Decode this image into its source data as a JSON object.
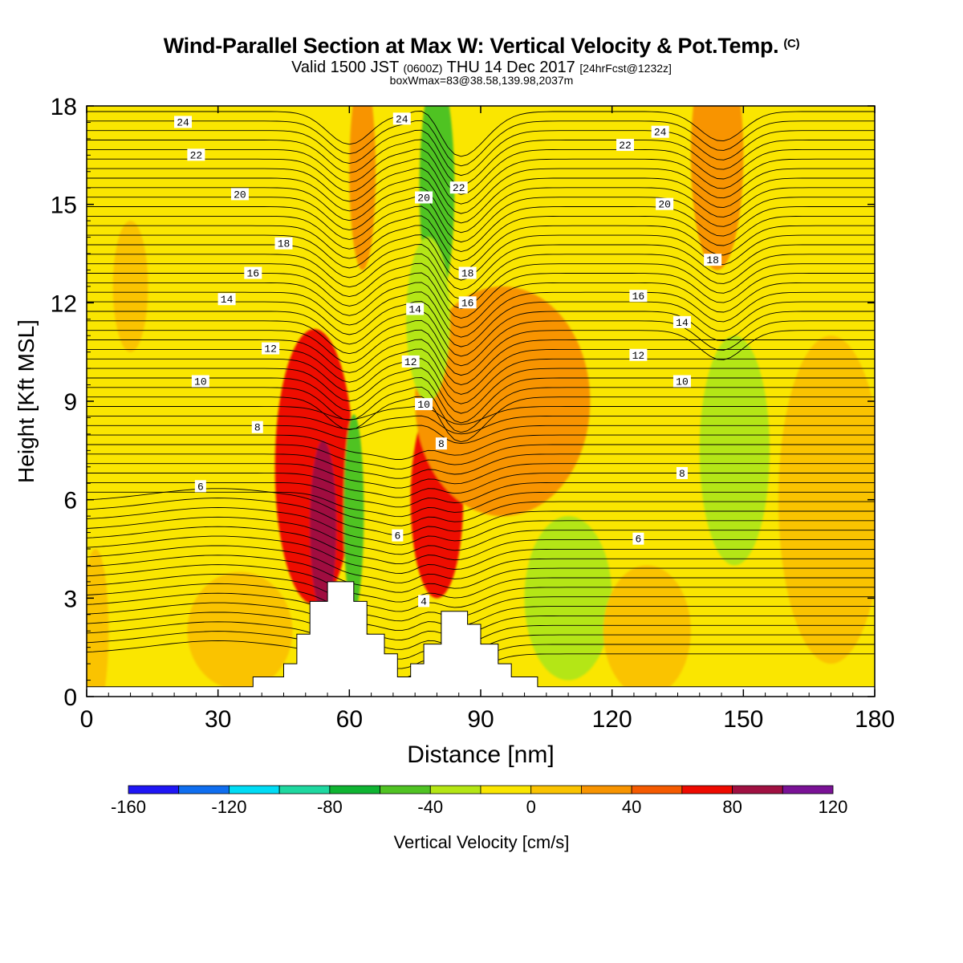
{
  "header": {
    "title": "Wind-Parallel Section at Max W: Vertical Velocity & Pot.Temp.",
    "copyright": "(C)",
    "valid_prefix": "Valid 1500 JST",
    "valid_utc": "(0600Z)",
    "valid_date": "THU 14 Dec 2017",
    "forecast": "[24hrFcst@1232z]",
    "box_info": "boxWmax=83@38.58,139.98,2037m"
  },
  "chart_data": {
    "type": "heatmap",
    "xlabel": "Distance [nm]",
    "ylabel": "Height [Kft MSL]",
    "xlim": [
      0,
      180
    ],
    "ylim": [
      0,
      18
    ],
    "x_ticks": [
      0,
      30,
      60,
      90,
      120,
      150,
      180
    ],
    "y_ticks": [
      0,
      3,
      6,
      9,
      12,
      15,
      18
    ],
    "colorbar": {
      "label": "Vertical Velocity [cm/s]",
      "tick_labels": [
        "-160",
        "-120",
        "-80",
        "-40",
        "0",
        "40",
        "80",
        "120"
      ],
      "tick_values": [
        -160,
        -120,
        -80,
        -40,
        0,
        40,
        80,
        120
      ],
      "bins": [
        {
          "lo": -160,
          "hi": -140,
          "color": "#1f16f5"
        },
        {
          "lo": -140,
          "hi": -120,
          "color": "#0f6ef0"
        },
        {
          "lo": -120,
          "hi": -100,
          "color": "#00dcf5"
        },
        {
          "lo": -100,
          "hi": -80,
          "color": "#1ed8a0"
        },
        {
          "lo": -80,
          "hi": -60,
          "color": "#0fb432"
        },
        {
          "lo": -60,
          "hi": -40,
          "color": "#50c323"
        },
        {
          "lo": -40,
          "hi": -20,
          "color": "#b4e614"
        },
        {
          "lo": -20,
          "hi": 0,
          "color": "#fae600"
        },
        {
          "lo": 0,
          "hi": 20,
          "color": "#fac300"
        },
        {
          "lo": 20,
          "hi": 40,
          "color": "#f89400"
        },
        {
          "lo": 40,
          "hi": 60,
          "color": "#f55a00"
        },
        {
          "lo": 60,
          "hi": 80,
          "color": "#ee0a00"
        },
        {
          "lo": 80,
          "hi": 100,
          "color": "#a01041"
        },
        {
          "lo": 100,
          "hi": 120,
          "color": "#7a1296"
        }
      ]
    },
    "vertical_velocity_features": [
      {
        "x": 52,
        "y": 7.0,
        "w_cm_s": 65,
        "rx": 9,
        "ry": 4.2
      },
      {
        "x": 54,
        "y": 5.2,
        "w_cm_s": 85,
        "rx": 3,
        "ry": 2.6
      },
      {
        "x": 61,
        "y": 5.6,
        "w_cm_s": -55,
        "rx": 2.3,
        "ry": 3.0
      },
      {
        "x": 80,
        "y": 6.0,
        "w_cm_s": 62,
        "rx": 6,
        "ry": 3.0
      },
      {
        "x": 95,
        "y": 9.0,
        "w_cm_s": 32,
        "rx": 20,
        "ry": 3.5
      },
      {
        "x": 80,
        "y": 15.5,
        "w_cm_s": -48,
        "rx": 4,
        "ry": 3.5
      },
      {
        "x": 78,
        "y": 11.5,
        "w_cm_s": -28,
        "rx": 5,
        "ry": 2.5
      },
      {
        "x": 148,
        "y": 7.5,
        "w_cm_s": -30,
        "rx": 8,
        "ry": 3.5
      },
      {
        "x": 110,
        "y": 3.0,
        "w_cm_s": -32,
        "rx": 10,
        "ry": 2.5
      },
      {
        "x": 144,
        "y": 16.5,
        "w_cm_s": 25,
        "rx": 6,
        "ry": 3.5
      },
      {
        "x": 63,
        "y": 16,
        "w_cm_s": 25,
        "rx": 3,
        "ry": 3.0
      },
      {
        "x": 170,
        "y": 6.0,
        "w_cm_s": 15,
        "rx": 12,
        "ry": 5.0
      },
      {
        "x": 35,
        "y": 2.0,
        "w_cm_s": 12,
        "rx": 12,
        "ry": 1.8
      },
      {
        "x": 10,
        "y": 12.5,
        "w_cm_s": 12,
        "rx": 4,
        "ry": 2.0
      },
      {
        "x": 2,
        "y": 2.0,
        "w_cm_s": 12,
        "rx": 3,
        "ry": 2.5
      },
      {
        "x": 128,
        "y": 2.0,
        "w_cm_s": 12,
        "rx": 10,
        "ry": 2.0
      }
    ],
    "terrain_kft": [
      [
        0,
        0.3
      ],
      [
        38,
        0.3
      ],
      [
        38,
        0.6
      ],
      [
        45,
        0.6
      ],
      [
        45,
        1.0
      ],
      [
        48,
        1.0
      ],
      [
        48,
        1.9
      ],
      [
        51,
        1.9
      ],
      [
        51,
        2.9
      ],
      [
        55,
        2.9
      ],
      [
        55,
        3.5
      ],
      [
        61,
        3.5
      ],
      [
        61,
        2.9
      ],
      [
        64,
        2.9
      ],
      [
        64,
        1.9
      ],
      [
        68,
        1.9
      ],
      [
        68,
        1.3
      ],
      [
        71,
        1.3
      ],
      [
        71,
        0.6
      ],
      [
        74,
        0.6
      ],
      [
        74,
        1.0
      ],
      [
        77,
        1.0
      ],
      [
        77,
        1.6
      ],
      [
        81,
        1.6
      ],
      [
        81,
        2.6
      ],
      [
        87,
        2.6
      ],
      [
        87,
        2.2
      ],
      [
        90,
        2.2
      ],
      [
        90,
        1.6
      ],
      [
        94,
        1.6
      ],
      [
        94,
        1.0
      ],
      [
        97,
        1.0
      ],
      [
        97,
        0.6
      ],
      [
        103,
        0.6
      ],
      [
        103,
        0.3
      ],
      [
        180,
        0.3
      ]
    ],
    "pot_temp_labels": [
      {
        "text": "24",
        "x": 22,
        "y": 17.5
      },
      {
        "text": "24",
        "x": 72,
        "y": 17.6
      },
      {
        "text": "24",
        "x": 131,
        "y": 17.2
      },
      {
        "text": "22",
        "x": 25,
        "y": 16.5
      },
      {
        "text": "22",
        "x": 85,
        "y": 15.5
      },
      {
        "text": "22",
        "x": 123,
        "y": 16.8
      },
      {
        "text": "20",
        "x": 35,
        "y": 15.3
      },
      {
        "text": "20",
        "x": 77,
        "y": 15.2
      },
      {
        "text": "20",
        "x": 132,
        "y": 15.0
      },
      {
        "text": "18",
        "x": 45,
        "y": 13.8
      },
      {
        "text": "18",
        "x": 87,
        "y": 12.9
      },
      {
        "text": "18",
        "x": 143,
        "y": 13.3
      },
      {
        "text": "16",
        "x": 38,
        "y": 12.9
      },
      {
        "text": "16",
        "x": 87,
        "y": 12.0
      },
      {
        "text": "16",
        "x": 126,
        "y": 12.2
      },
      {
        "text": "14",
        "x": 32,
        "y": 12.1
      },
      {
        "text": "14",
        "x": 75,
        "y": 11.8
      },
      {
        "text": "14",
        "x": 136,
        "y": 11.4
      },
      {
        "text": "12",
        "x": 42,
        "y": 10.6
      },
      {
        "text": "12",
        "x": 74,
        "y": 10.2
      },
      {
        "text": "12",
        "x": 126,
        "y": 10.4
      },
      {
        "text": "10",
        "x": 26,
        "y": 9.6
      },
      {
        "text": "10",
        "x": 77,
        "y": 8.9
      },
      {
        "text": "10",
        "x": 136,
        "y": 9.6
      },
      {
        "text": "8",
        "x": 39,
        "y": 8.2
      },
      {
        "text": "8",
        "x": 81,
        "y": 7.7
      },
      {
        "text": "8",
        "x": 136,
        "y": 6.8
      },
      {
        "text": "6",
        "x": 26,
        "y": 6.4
      },
      {
        "text": "6",
        "x": 71,
        "y": 4.9
      },
      {
        "text": "6",
        "x": 126,
        "y": 4.8
      },
      {
        "text": "4",
        "x": 77,
        "y": 2.9
      }
    ]
  }
}
